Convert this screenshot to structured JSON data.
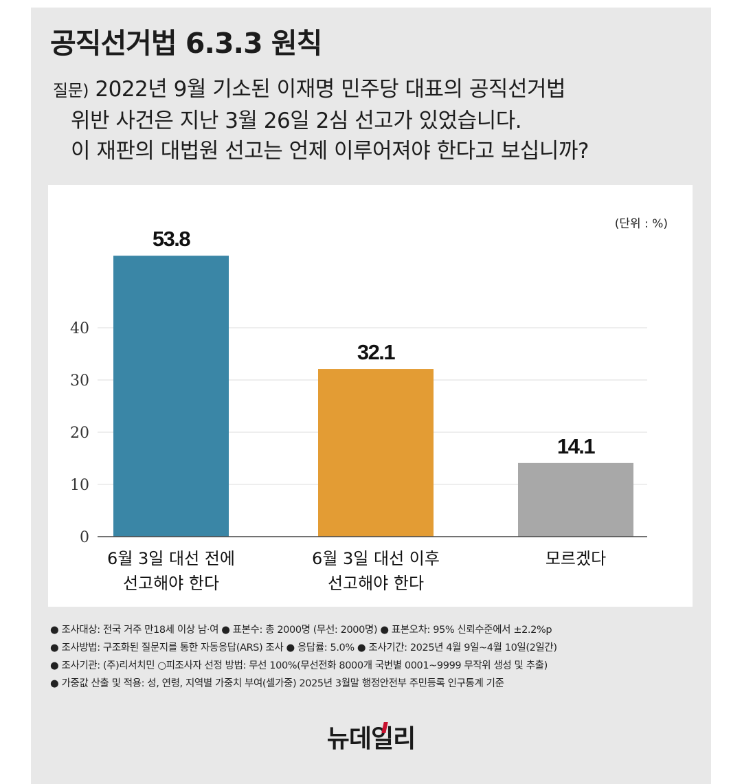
{
  "header": {
    "title": "공직선거법 6.3.3 원칙",
    "question_prefix": "질문)",
    "question_lines": [
      "2022년 9월 기소된 이재명 민주당 대표의 공직선거법",
      "위반 사건은 지난 3월 26일 2심 선고가 있었습니다.",
      "이 재판의 대법원 선고는 언제 이루어져야 한다고 보십니까?"
    ]
  },
  "chart_data": {
    "type": "bar",
    "unit_label": "(단위 : %)",
    "categories": [
      [
        "6월 3일 대선 전에",
        "선고해야 한다"
      ],
      [
        "6월 3일 대선 이후",
        "선고해야 한다"
      ],
      [
        "모르겠다"
      ]
    ],
    "values": [
      53.8,
      32.1,
      14.1
    ],
    "value_labels": [
      "53.8",
      "32.1",
      "14.1"
    ],
    "colors": [
      "#3a86a6",
      "#e39c34",
      "#a8a8a8"
    ],
    "yticks": [
      0,
      10,
      20,
      30,
      40
    ],
    "ylim": [
      0,
      57
    ],
    "grid": true
  },
  "notes": [
    "● 조사대상: 전국 거주 만18세 이상 남·여 ● 표본수: 총 2000명 (무선: 2000명) ● 표본오차: 95% 신뢰수준에서 ±2.2%p",
    "● 조사방법: 구조화된 질문지를 통한 자동응답(ARS) 조사 ● 응답률: 5.0% ● 조사기간: 2025년 4월 9일~4월 10일(2일간)",
    "● 조사기관: (주)리서치민 ○피조사자 선정 방법: 무선 100%(무선전화 8000개 국번별 0001~9999 무작위 생성 및 추출)",
    "● 가중값 산출 및 적용: 성, 연령, 지역별 가중치 부여(셀가중) 2025년 3월말 행정안전부 주민등록 인구통계 기준"
  ],
  "logo": "뉴데일리"
}
